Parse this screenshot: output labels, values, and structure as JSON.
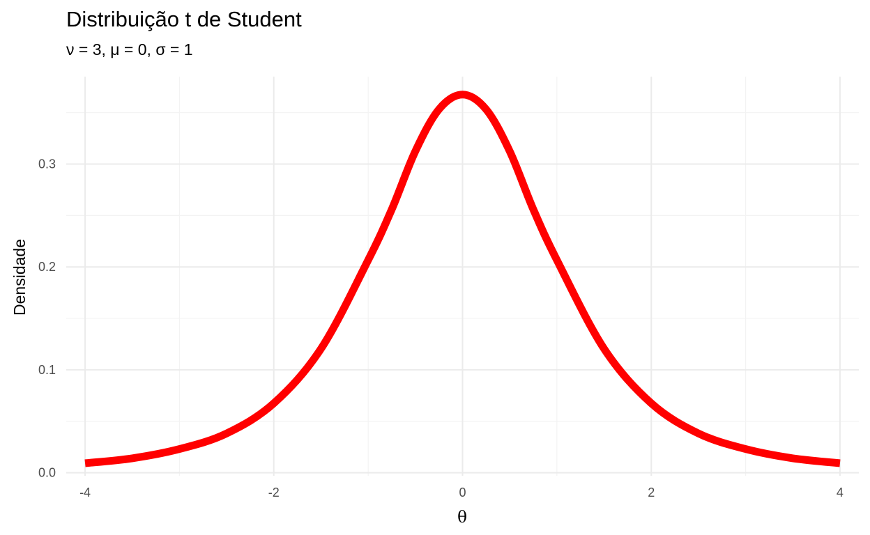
{
  "chart_data": {
    "type": "line",
    "title": "Distribuição t de Student",
    "subtitle": "ν = 3, μ = 0, σ = 1",
    "xlabel": "θ",
    "ylabel": "Densidade",
    "xlim": [
      -4.2,
      4.2
    ],
    "ylim": [
      -0.003,
      0.385
    ],
    "x_ticks": [
      -4,
      -2,
      0,
      2,
      4
    ],
    "x_tick_labels": [
      "-4",
      "-2",
      "0",
      "2",
      "4"
    ],
    "y_ticks": [
      0.0,
      0.1,
      0.2,
      0.3
    ],
    "y_tick_labels": [
      "0.0",
      "0.1",
      "0.2",
      "0.3"
    ],
    "grid": true,
    "legend": "none",
    "series": [
      {
        "color": "#ff0000",
        "x": [
          -4.0,
          -3.5,
          -3.0,
          -2.5,
          -2.0,
          -1.5,
          -1.0,
          -0.75,
          -0.5,
          -0.25,
          0.0,
          0.25,
          0.5,
          0.75,
          1.0,
          1.5,
          2.0,
          2.5,
          3.0,
          3.5,
          4.0
        ],
        "y": [
          0.0092,
          0.014,
          0.023,
          0.0382,
          0.0675,
          0.1205,
          0.2067,
          0.256,
          0.3125,
          0.3532,
          0.3676,
          0.3532,
          0.3125,
          0.256,
          0.2067,
          0.1205,
          0.0675,
          0.0382,
          0.023,
          0.014,
          0.0092
        ]
      }
    ]
  }
}
